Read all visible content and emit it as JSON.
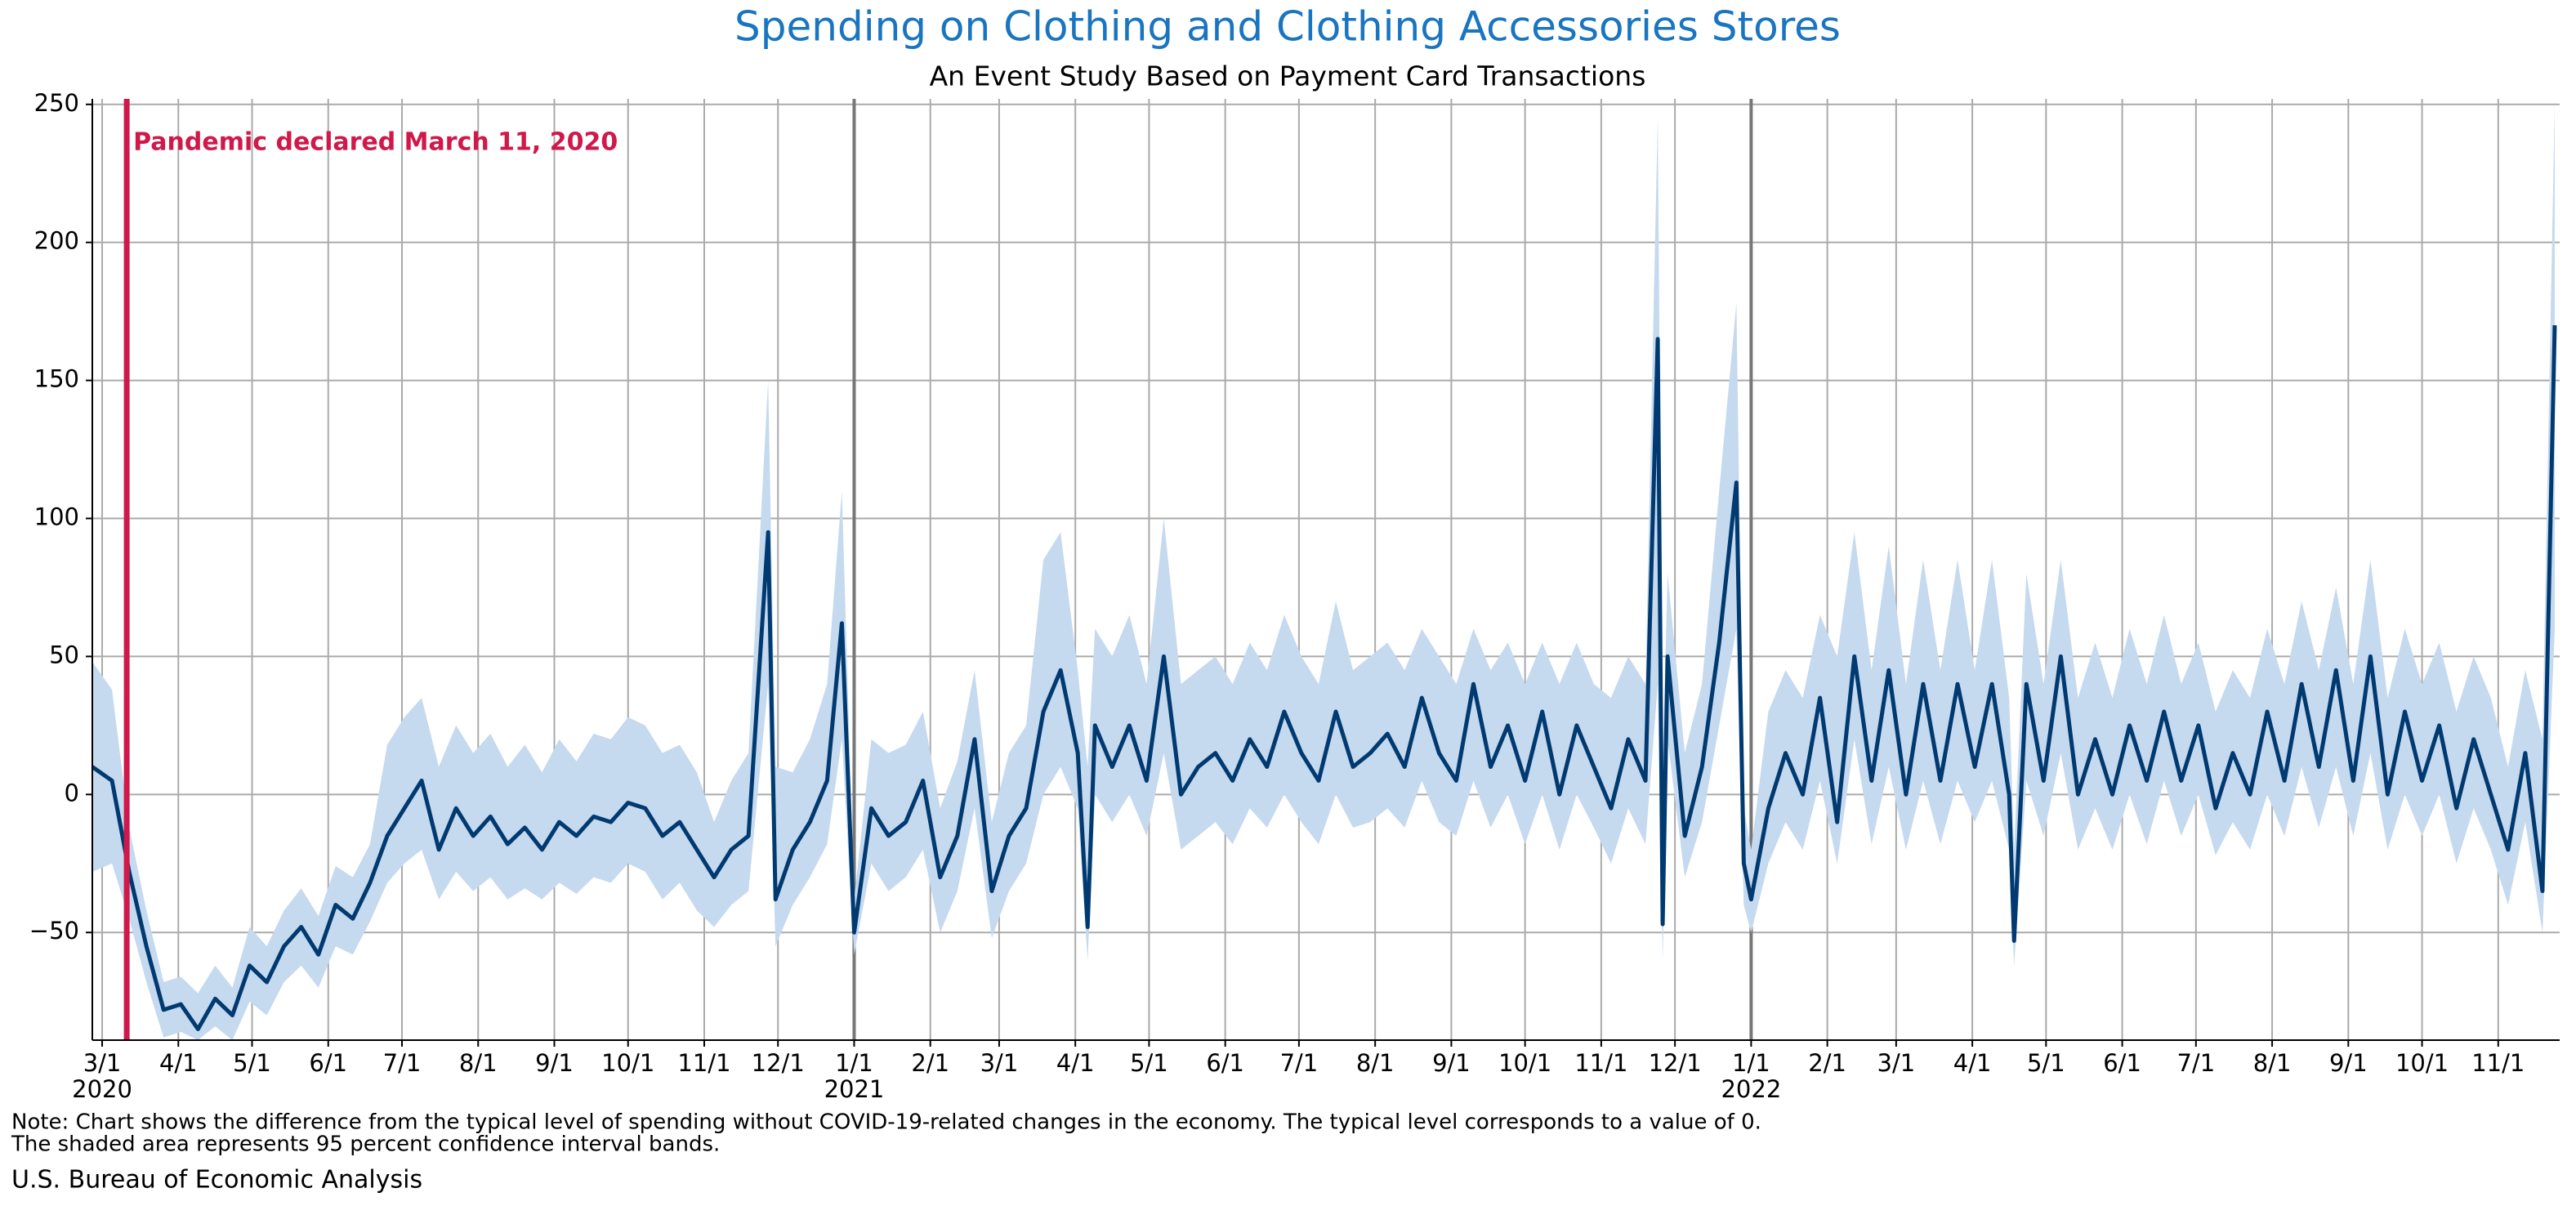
{
  "chart_data": {
    "type": "line",
    "title": "Spending on Clothing and Clothing Accessories Stores",
    "subtitle": "An Event Study Based on Payment Card Transactions",
    "note": [
      "Note: Chart shows the difference from the typical level of spending without COVID-19-related changes in the economy. The typical level corresponds to a value of 0.",
      "The shaded area represents 95 percent confidence interval bands."
    ],
    "source": "U.S. Bureau of Economic Analysis",
    "color": "#003a70",
    "band_color": "#c5d9ef",
    "title_color": "#1a75c0",
    "grid": true,
    "event": {
      "date": "2020-03-11",
      "label": "Pandemic declared March 11, 2020",
      "color": "#d0184a"
    },
    "xlim": [
      "2020-02-26",
      "2022-11-26"
    ],
    "ylim": [
      -89,
      252
    ],
    "yticks": [
      {
        "value": -50,
        "label": "−50"
      },
      0,
      50,
      100,
      150,
      200,
      250
    ],
    "xticks": [
      {
        "value": "2020-03-01",
        "label": "3/1"
      },
      {
        "value": "2020-04-01",
        "label": "4/1"
      },
      {
        "value": "2020-05-01",
        "label": "5/1"
      },
      {
        "value": "2020-06-01",
        "label": "6/1"
      },
      {
        "value": "2020-07-01",
        "label": "7/1"
      },
      {
        "value": "2020-08-01",
        "label": "8/1"
      },
      {
        "value": "2020-09-01",
        "label": "9/1"
      },
      {
        "value": "2020-10-01",
        "label": "10/1"
      },
      {
        "value": "2020-11-01",
        "label": "11/1"
      },
      {
        "value": "2020-12-01",
        "label": "12/1"
      },
      {
        "value": "2021-01-01",
        "label": "1/1"
      },
      {
        "value": "2021-02-01",
        "label": "2/1"
      },
      {
        "value": "2021-03-01",
        "label": "3/1"
      },
      {
        "value": "2021-04-01",
        "label": "4/1"
      },
      {
        "value": "2021-05-01",
        "label": "5/1"
      },
      {
        "value": "2021-06-01",
        "label": "6/1"
      },
      {
        "value": "2021-07-01",
        "label": "7/1"
      },
      {
        "value": "2021-08-01",
        "label": "8/1"
      },
      {
        "value": "2021-09-01",
        "label": "9/1"
      },
      {
        "value": "2021-10-01",
        "label": "10/1"
      },
      {
        "value": "2021-11-01",
        "label": "11/1"
      },
      {
        "value": "2021-12-01",
        "label": "12/1"
      },
      {
        "value": "2022-01-01",
        "label": "1/1"
      },
      {
        "value": "2022-02-01",
        "label": "2/1"
      },
      {
        "value": "2022-03-01",
        "label": "3/1"
      },
      {
        "value": "2022-04-01",
        "label": "4/1"
      },
      {
        "value": "2022-05-01",
        "label": "5/1"
      },
      {
        "value": "2022-06-01",
        "label": "6/1"
      },
      {
        "value": "2022-07-01",
        "label": "7/1"
      },
      {
        "value": "2022-08-01",
        "label": "8/1"
      },
      {
        "value": "2022-09-01",
        "label": "9/1"
      },
      {
        "value": "2022-10-01",
        "label": "10/1"
      },
      {
        "value": "2022-11-01",
        "label": "11/1"
      }
    ],
    "year_ticks": [
      {
        "value": "2020-03-01",
        "label": "2020"
      },
      {
        "value": "2021-01-01",
        "label": "2021"
      },
      {
        "value": "2022-01-01",
        "label": "2022"
      }
    ],
    "x": [
      "2020-02-26",
      "2020-03-05",
      "2020-03-12",
      "2020-03-19",
      "2020-03-26",
      "2020-04-02",
      "2020-04-09",
      "2020-04-16",
      "2020-04-23",
      "2020-04-30",
      "2020-05-07",
      "2020-05-14",
      "2020-05-21",
      "2020-05-28",
      "2020-06-04",
      "2020-06-11",
      "2020-06-18",
      "2020-06-25",
      "2020-07-02",
      "2020-07-09",
      "2020-07-16",
      "2020-07-23",
      "2020-07-30",
      "2020-08-06",
      "2020-08-13",
      "2020-08-20",
      "2020-08-27",
      "2020-09-03",
      "2020-09-10",
      "2020-09-17",
      "2020-09-24",
      "2020-10-01",
      "2020-10-08",
      "2020-10-15",
      "2020-10-22",
      "2020-10-29",
      "2020-11-05",
      "2020-11-12",
      "2020-11-19",
      "2020-11-27",
      "2020-11-30",
      "2020-12-07",
      "2020-12-14",
      "2020-12-21",
      "2020-12-27",
      "2021-01-01",
      "2021-01-08",
      "2021-01-15",
      "2021-01-22",
      "2021-01-29",
      "2021-02-05",
      "2021-02-12",
      "2021-02-19",
      "2021-02-26",
      "2021-03-05",
      "2021-03-12",
      "2021-03-19",
      "2021-03-26",
      "2021-04-02",
      "2021-04-06",
      "2021-04-09",
      "2021-04-16",
      "2021-04-23",
      "2021-04-30",
      "2021-05-07",
      "2021-05-14",
      "2021-05-21",
      "2021-05-28",
      "2021-06-04",
      "2021-06-11",
      "2021-06-18",
      "2021-06-25",
      "2021-07-02",
      "2021-07-09",
      "2021-07-16",
      "2021-07-23",
      "2021-07-30",
      "2021-08-06",
      "2021-08-13",
      "2021-08-20",
      "2021-08-27",
      "2021-09-03",
      "2021-09-10",
      "2021-09-17",
      "2021-09-24",
      "2021-10-01",
      "2021-10-08",
      "2021-10-15",
      "2021-10-22",
      "2021-10-29",
      "2021-11-05",
      "2021-11-12",
      "2021-11-19",
      "2021-11-24",
      "2021-11-26",
      "2021-11-28",
      "2021-12-05",
      "2021-12-12",
      "2021-12-19",
      "2021-12-26",
      "2021-12-29",
      "2022-01-01",
      "2022-01-08",
      "2022-01-15",
      "2022-01-22",
      "2022-01-29",
      "2022-02-05",
      "2022-02-12",
      "2022-02-19",
      "2022-02-26",
      "2022-03-05",
      "2022-03-12",
      "2022-03-19",
      "2022-03-26",
      "2022-04-02",
      "2022-04-09",
      "2022-04-16",
      "2022-04-18",
      "2022-04-23",
      "2022-04-30",
      "2022-05-07",
      "2022-05-14",
      "2022-05-21",
      "2022-05-28",
      "2022-06-04",
      "2022-06-11",
      "2022-06-18",
      "2022-06-25",
      "2022-07-02",
      "2022-07-09",
      "2022-07-16",
      "2022-07-23",
      "2022-07-30",
      "2022-08-06",
      "2022-08-13",
      "2022-08-20",
      "2022-08-27",
      "2022-09-03",
      "2022-09-10",
      "2022-09-17",
      "2022-09-24",
      "2022-10-01",
      "2022-10-08",
      "2022-10-15",
      "2022-10-22",
      "2022-10-29",
      "2022-11-05",
      "2022-11-12",
      "2022-11-19",
      "2022-11-24"
    ],
    "values": [
      10,
      5,
      -28,
      -55,
      -78,
      -76,
      -85,
      -74,
      -80,
      -62,
      -68,
      -55,
      -48,
      -58,
      -40,
      -45,
      -32,
      -15,
      -5,
      5,
      -20,
      -5,
      -15,
      -8,
      -18,
      -12,
      -20,
      -10,
      -15,
      -8,
      -10,
      -3,
      -5,
      -15,
      -10,
      -20,
      -30,
      -20,
      -15,
      95,
      -38,
      -20,
      -10,
      5,
      62,
      -50,
      -5,
      -15,
      -10,
      5,
      -30,
      -15,
      20,
      -35,
      -15,
      -5,
      30,
      45,
      15,
      -48,
      25,
      10,
      25,
      5,
      50,
      0,
      10,
      15,
      5,
      20,
      10,
      30,
      15,
      5,
      30,
      10,
      15,
      22,
      10,
      35,
      15,
      5,
      40,
      10,
      25,
      5,
      30,
      0,
      25,
      10,
      -5,
      20,
      5,
      165,
      -47,
      50,
      -15,
      10,
      55,
      113,
      -25,
      -38,
      -5,
      15,
      0,
      35,
      -10,
      50,
      5,
      45,
      0,
      40,
      5,
      40,
      10,
      40,
      0,
      -53,
      40,
      5,
      50,
      0,
      20,
      0,
      25,
      5,
      30,
      5,
      25,
      -5,
      15,
      0,
      30,
      5,
      40,
      10,
      45,
      5,
      50,
      0,
      30,
      5,
      25,
      -5,
      20,
      0,
      -20,
      15,
      -35,
      170
    ],
    "lower": [
      -28,
      -25,
      -45,
      -68,
      -88,
      -86,
      -89,
      -84,
      -89,
      -75,
      -80,
      -68,
      -62,
      -70,
      -55,
      -58,
      -46,
      -32,
      -25,
      -20,
      -38,
      -28,
      -35,
      -30,
      -38,
      -34,
      -38,
      -32,
      -36,
      -30,
      -32,
      -25,
      -28,
      -38,
      -32,
      -42,
      -48,
      -40,
      -35,
      40,
      -55,
      -40,
      -30,
      -18,
      20,
      -58,
      -25,
      -35,
      -30,
      -20,
      -50,
      -35,
      -5,
      -52,
      -35,
      -25,
      0,
      10,
      -5,
      -60,
      0,
      -10,
      0,
      -15,
      15,
      -20,
      -15,
      -10,
      -18,
      -5,
      -12,
      0,
      -10,
      -18,
      0,
      -12,
      -10,
      -5,
      -12,
      5,
      -10,
      -15,
      5,
      -12,
      0,
      -18,
      0,
      -20,
      0,
      -12,
      -25,
      -5,
      -18,
      40,
      -60,
      20,
      -30,
      -10,
      25,
      60,
      -40,
      -50,
      -25,
      -10,
      -20,
      5,
      -25,
      20,
      -18,
      10,
      -20,
      5,
      -18,
      5,
      -10,
      5,
      -20,
      -62,
      5,
      -15,
      15,
      -20,
      -5,
      -20,
      0,
      -18,
      5,
      -15,
      0,
      -22,
      -10,
      -20,
      0,
      -15,
      10,
      -12,
      10,
      -15,
      15,
      -20,
      0,
      -15,
      0,
      -25,
      -5,
      -20,
      -40,
      -10,
      -50,
      60
    ],
    "upper": [
      48,
      38,
      -12,
      -42,
      -68,
      -66,
      -72,
      -62,
      -70,
      -48,
      -55,
      -42,
      -34,
      -44,
      -26,
      -30,
      -18,
      18,
      28,
      35,
      10,
      25,
      15,
      22,
      10,
      18,
      8,
      20,
      12,
      22,
      20,
      28,
      25,
      15,
      18,
      8,
      -10,
      5,
      15,
      150,
      10,
      8,
      20,
      40,
      110,
      -38,
      20,
      15,
      18,
      30,
      -5,
      12,
      45,
      -10,
      15,
      25,
      85,
      95,
      45,
      10,
      60,
      50,
      65,
      40,
      100,
      40,
      45,
      50,
      40,
      55,
      45,
      65,
      50,
      40,
      70,
      45,
      50,
      55,
      45,
      60,
      50,
      40,
      60,
      45,
      55,
      40,
      55,
      40,
      55,
      40,
      35,
      50,
      40,
      245,
      10,
      80,
      15,
      40,
      110,
      178,
      -5,
      -20,
      30,
      45,
      35,
      65,
      50,
      95,
      45,
      90,
      40,
      85,
      45,
      85,
      45,
      85,
      35,
      -20,
      80,
      40,
      85,
      35,
      55,
      35,
      60,
      40,
      65,
      40,
      55,
      30,
      45,
      35,
      60,
      40,
      70,
      45,
      75,
      40,
      85,
      35,
      60,
      40,
      55,
      30,
      50,
      35,
      10,
      45,
      20,
      250
    ]
  }
}
